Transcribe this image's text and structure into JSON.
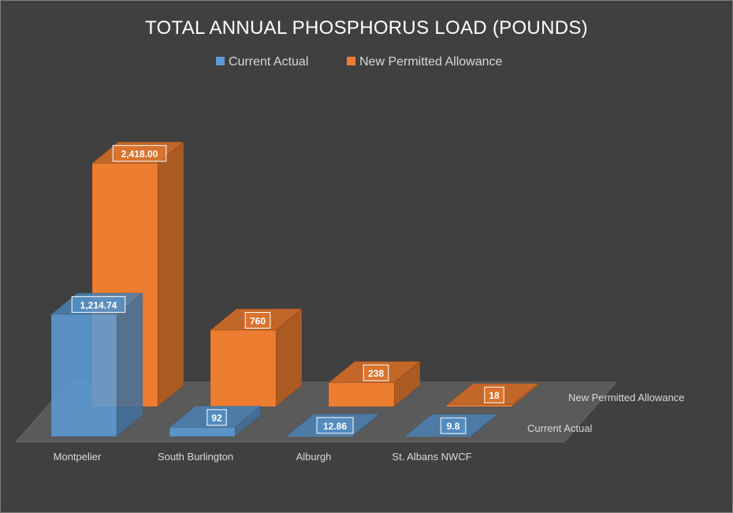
{
  "chart_data": {
    "type": "bar",
    "title": "TOTAL ANNUAL PHOSPHORUS LOAD (POUNDS)",
    "categories": [
      "Montpelier",
      "South Burlington",
      "Alburgh",
      "St. Albans NWCF"
    ],
    "series": [
      {
        "name": "Current Actual",
        "values": [
          1214.74,
          92,
          12.86,
          9.8
        ],
        "labels": [
          "1,214.74",
          "92",
          "12.86",
          "9.8"
        ],
        "color": "#5b9bd5"
      },
      {
        "name": "New Permitted Allowance",
        "values": [
          2418,
          760,
          238,
          18
        ],
        "labels": [
          "2,418.00",
          "760",
          "238",
          "18"
        ],
        "color": "#ed7d31"
      }
    ],
    "ylim": [
      0,
      2500
    ],
    "legend": "top",
    "grid": false
  }
}
